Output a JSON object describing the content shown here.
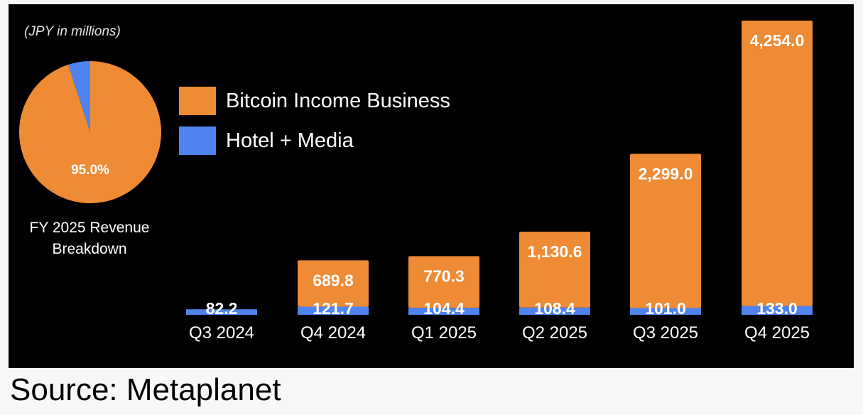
{
  "source": "Source: Metaplanet",
  "chart_data": [
    {
      "type": "bar",
      "stacked": true,
      "unit_note": "(JPY in millions)",
      "categories": [
        "Q3 2024",
        "Q4 2024",
        "Q1 2025",
        "Q2 2025",
        "Q3 2025",
        "Q4 2025"
      ],
      "series": [
        {
          "name": "Hotel + Media",
          "color": "#4f84f0",
          "values": [
            82.2,
            121.7,
            104.4,
            108.4,
            101.0,
            133.0
          ],
          "labels": [
            "82.2",
            "121.7",
            "104.4",
            "108.4",
            "101.0",
            "133.0"
          ]
        },
        {
          "name": "Bitcoin Income Business",
          "color": "#ef8a35",
          "values": [
            0,
            689.8,
            770.3,
            1130.6,
            2299.0,
            4254.0
          ],
          "labels": [
            "",
            "689.8",
            "770.3",
            "1,130.6",
            "2,299.0",
            "4,254.0"
          ]
        }
      ],
      "legend": [
        {
          "label": "Bitcoin Income Business",
          "color": "#ef8a35"
        },
        {
          "label": "Hotel + Media",
          "color": "#4f84f0"
        }
      ],
      "legend_placement": "top-left",
      "grid": false,
      "ylim": [
        0,
        4400
      ]
    },
    {
      "type": "pie",
      "caption": [
        "FY 2025 Revenue",
        "Breakdown"
      ],
      "slices": [
        {
          "name": "Bitcoin Income Business",
          "value": 95.0,
          "label": "95.0%",
          "color": "#ef8a35"
        },
        {
          "name": "Hotel + Media",
          "value": 5.0,
          "label": "",
          "color": "#4f84f0"
        }
      ]
    }
  ]
}
